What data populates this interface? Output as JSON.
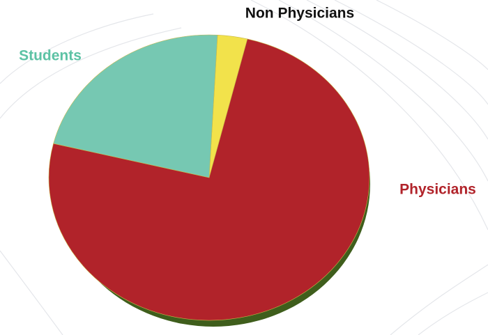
{
  "chart_data": {
    "type": "pie",
    "categories": [
      "Non Physicians",
      "Physicians",
      "Students"
    ],
    "values": [
      3,
      75,
      22
    ],
    "colors": [
      "#f2e24b",
      "#b1232a",
      "#76c8b2"
    ],
    "label_colors": [
      "#111111",
      "#b1232a",
      "#5cc2a4"
    ]
  }
}
